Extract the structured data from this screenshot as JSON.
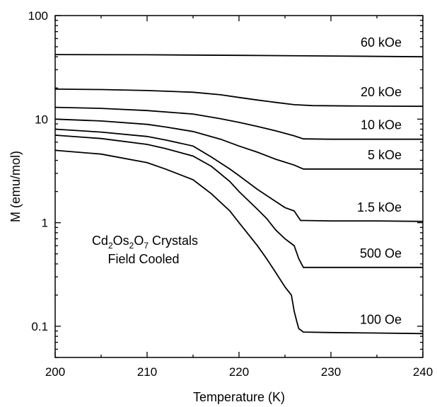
{
  "chart_data": {
    "type": "line",
    "xlabel": "Temperature (K)",
    "ylabel": "M (emu/mol)",
    "xlim": [
      200,
      240
    ],
    "ylim": [
      0.05,
      100
    ],
    "yscale": "log",
    "xticks": [
      "200",
      "210",
      "220",
      "230",
      "240"
    ],
    "yticks": [
      "0.1",
      "1",
      "10",
      "100"
    ],
    "grid": false,
    "annotation": {
      "parts": [
        [
          "Cd",
          ""
        ],
        [
          "2",
          "sub"
        ],
        [
          "Os",
          ""
        ],
        [
          "2",
          "sub"
        ],
        [
          "O",
          ""
        ],
        [
          "7",
          "sub"
        ],
        [
          " Crystals",
          ""
        ]
      ],
      "line2": "Field Cooled"
    },
    "series": [
      {
        "name": "60 kOe",
        "x": [
          200,
          210,
          220,
          230,
          240
        ],
        "y": [
          42,
          41.8,
          41.3,
          40.7,
          40
        ]
      },
      {
        "name": "20 kOe",
        "x": [
          200,
          205,
          210,
          215,
          218,
          220,
          222,
          224,
          226,
          228,
          232,
          236,
          240
        ],
        "y": [
          19.5,
          19.3,
          18.9,
          18.2,
          17.2,
          16.2,
          15.3,
          14.5,
          13.8,
          13.5,
          13.4,
          13.35,
          13.3
        ]
      },
      {
        "name": "10 kOe",
        "x": [
          200,
          205,
          210,
          215,
          218,
          220,
          222,
          224,
          226,
          227,
          230,
          235,
          240
        ],
        "y": [
          13,
          12.7,
          12.1,
          11.2,
          10.1,
          9.3,
          8.5,
          7.7,
          6.9,
          6.45,
          6.4,
          6.4,
          6.4
        ]
      },
      {
        "name": "5 kOe",
        "x": [
          200,
          205,
          210,
          212,
          215,
          218,
          220,
          222,
          224,
          226,
          227,
          230,
          235,
          240
        ],
        "y": [
          10,
          9.6,
          8.9,
          8.4,
          7.6,
          6.4,
          5.5,
          4.8,
          4.1,
          3.6,
          3.3,
          3.3,
          3.3,
          3.3
        ]
      },
      {
        "name": "1.5 kOe",
        "x": [
          200,
          205,
          210,
          212,
          215,
          217,
          219,
          220,
          222,
          224,
          225,
          226,
          226.7,
          227,
          230,
          235,
          240
        ],
        "y": [
          8,
          7.5,
          6.8,
          6.3,
          5.5,
          4.3,
          3.3,
          2.85,
          2.1,
          1.6,
          1.4,
          1.3,
          1.05,
          1.05,
          1.04,
          1.04,
          1.03
        ]
      },
      {
        "name": "500 Oe",
        "x": [
          200,
          205,
          210,
          212,
          215,
          217,
          219,
          220,
          222,
          223,
          224,
          225,
          226,
          226.5,
          227,
          230,
          235,
          240
        ],
        "y": [
          7,
          6.5,
          5.7,
          5.2,
          4.4,
          3.5,
          2.5,
          2.0,
          1.35,
          1.1,
          0.85,
          0.7,
          0.6,
          0.45,
          0.37,
          0.37,
          0.37,
          0.37
        ]
      },
      {
        "name": "100 Oe",
        "x": [
          200,
          205,
          210,
          212,
          215,
          217,
          219,
          220,
          222,
          223,
          224,
          225,
          225.7,
          226,
          226.3,
          226.5,
          227,
          230,
          235,
          240
        ],
        "y": [
          5,
          4.6,
          3.8,
          3.3,
          2.6,
          1.9,
          1.3,
          1.0,
          0.6,
          0.45,
          0.33,
          0.24,
          0.2,
          0.14,
          0.11,
          0.095,
          0.088,
          0.087,
          0.086,
          0.085
        ]
      }
    ]
  }
}
